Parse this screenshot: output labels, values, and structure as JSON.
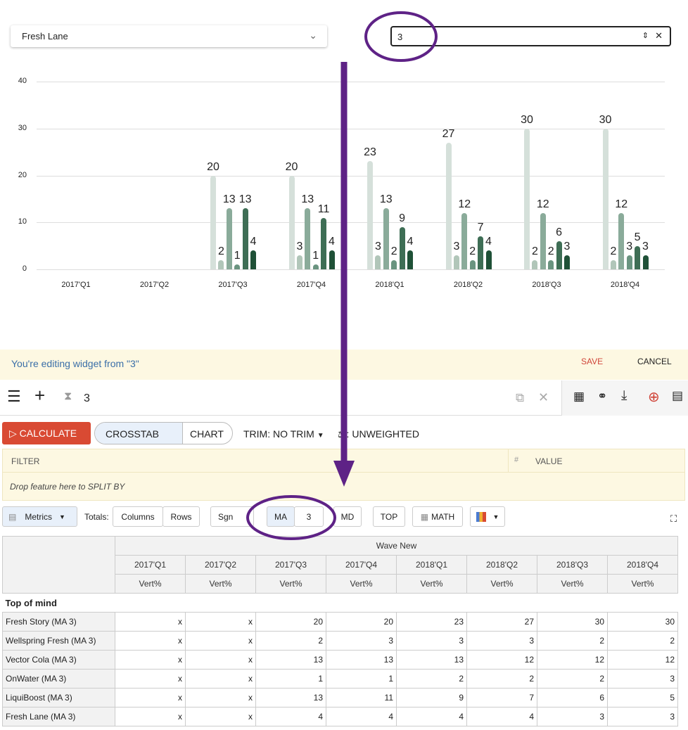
{
  "selector": {
    "value": "Fresh Lane"
  },
  "number_input": {
    "value": "3"
  },
  "chart_data": {
    "type": "bar",
    "categories": [
      "2017'Q1",
      "2017'Q2",
      "2017'Q3",
      "2017'Q4",
      "2018'Q1",
      "2018'Q2",
      "2018'Q3",
      "2018'Q4"
    ],
    "ylim": [
      0,
      40
    ],
    "yticks": [
      0,
      10,
      20,
      30,
      40
    ],
    "grid": true,
    "series": [
      {
        "values": [
          null,
          null,
          20,
          20,
          23,
          27,
          30,
          30
        ]
      },
      {
        "values": [
          null,
          null,
          2,
          3,
          3,
          3,
          2,
          2
        ]
      },
      {
        "values": [
          null,
          null,
          13,
          13,
          13,
          12,
          12,
          12
        ]
      },
      {
        "values": [
          null,
          null,
          1,
          1,
          2,
          2,
          2,
          3
        ]
      },
      {
        "values": [
          null,
          null,
          13,
          11,
          9,
          7,
          6,
          5
        ]
      },
      {
        "values": [
          null,
          null,
          4,
          4,
          4,
          4,
          3,
          3
        ]
      }
    ],
    "colors": [
      "#d5e0da",
      "#b1c6b9",
      "#8aab9a",
      "#6a9480",
      "#3e6e55",
      "#1f5137"
    ]
  },
  "banner": {
    "text": "You're editing widget from \"3\"",
    "save": "SAVE",
    "cancel": "CANCEL"
  },
  "widget": {
    "title": "3"
  },
  "toolbar": {
    "calculate": "CALCULATE",
    "crosstab": "CROSSTAB",
    "chart": "CHART",
    "trim": "TRIM: NO TRIM",
    "weight": "UNWEIGHTED"
  },
  "filter": {
    "filter_label": "FILTER",
    "value_label": "VALUE",
    "drop_hint": "Drop feature here to SPLIT BY"
  },
  "options": {
    "metrics": "Metrics",
    "totals": "Totals:",
    "columns": "Columns",
    "rows": "Rows",
    "sgn": "Sgn",
    "ma": "MA",
    "ma_value": "3",
    "md": "MD",
    "top": "TOP",
    "math": "MATH"
  },
  "table": {
    "group_header": "Wave New",
    "columns": [
      "2017'Q1",
      "2017'Q2",
      "2017'Q3",
      "2017'Q4",
      "2018'Q1",
      "2018'Q2",
      "2018'Q3",
      "2018'Q4"
    ],
    "metric": "Vert%",
    "section": "Top of mind",
    "rows": [
      {
        "label": "Fresh Story (MA 3)",
        "values": [
          "x",
          "x",
          "20",
          "20",
          "23",
          "27",
          "30",
          "30"
        ]
      },
      {
        "label": "Wellspring Fresh (MA 3)",
        "values": [
          "x",
          "x",
          "2",
          "3",
          "3",
          "3",
          "2",
          "2"
        ]
      },
      {
        "label": "Vector Cola (MA 3)",
        "values": [
          "x",
          "x",
          "13",
          "13",
          "13",
          "12",
          "12",
          "12"
        ]
      },
      {
        "label": "OnWater (MA 3)",
        "values": [
          "x",
          "x",
          "1",
          "1",
          "2",
          "2",
          "2",
          "3"
        ]
      },
      {
        "label": "LiquiBoost (MA 3)",
        "values": [
          "x",
          "x",
          "13",
          "11",
          "9",
          "7",
          "6",
          "5"
        ]
      },
      {
        "label": "Fresh Lane (MA 3)",
        "values": [
          "x",
          "x",
          "4",
          "4",
          "4",
          "4",
          "3",
          "3"
        ]
      }
    ]
  }
}
